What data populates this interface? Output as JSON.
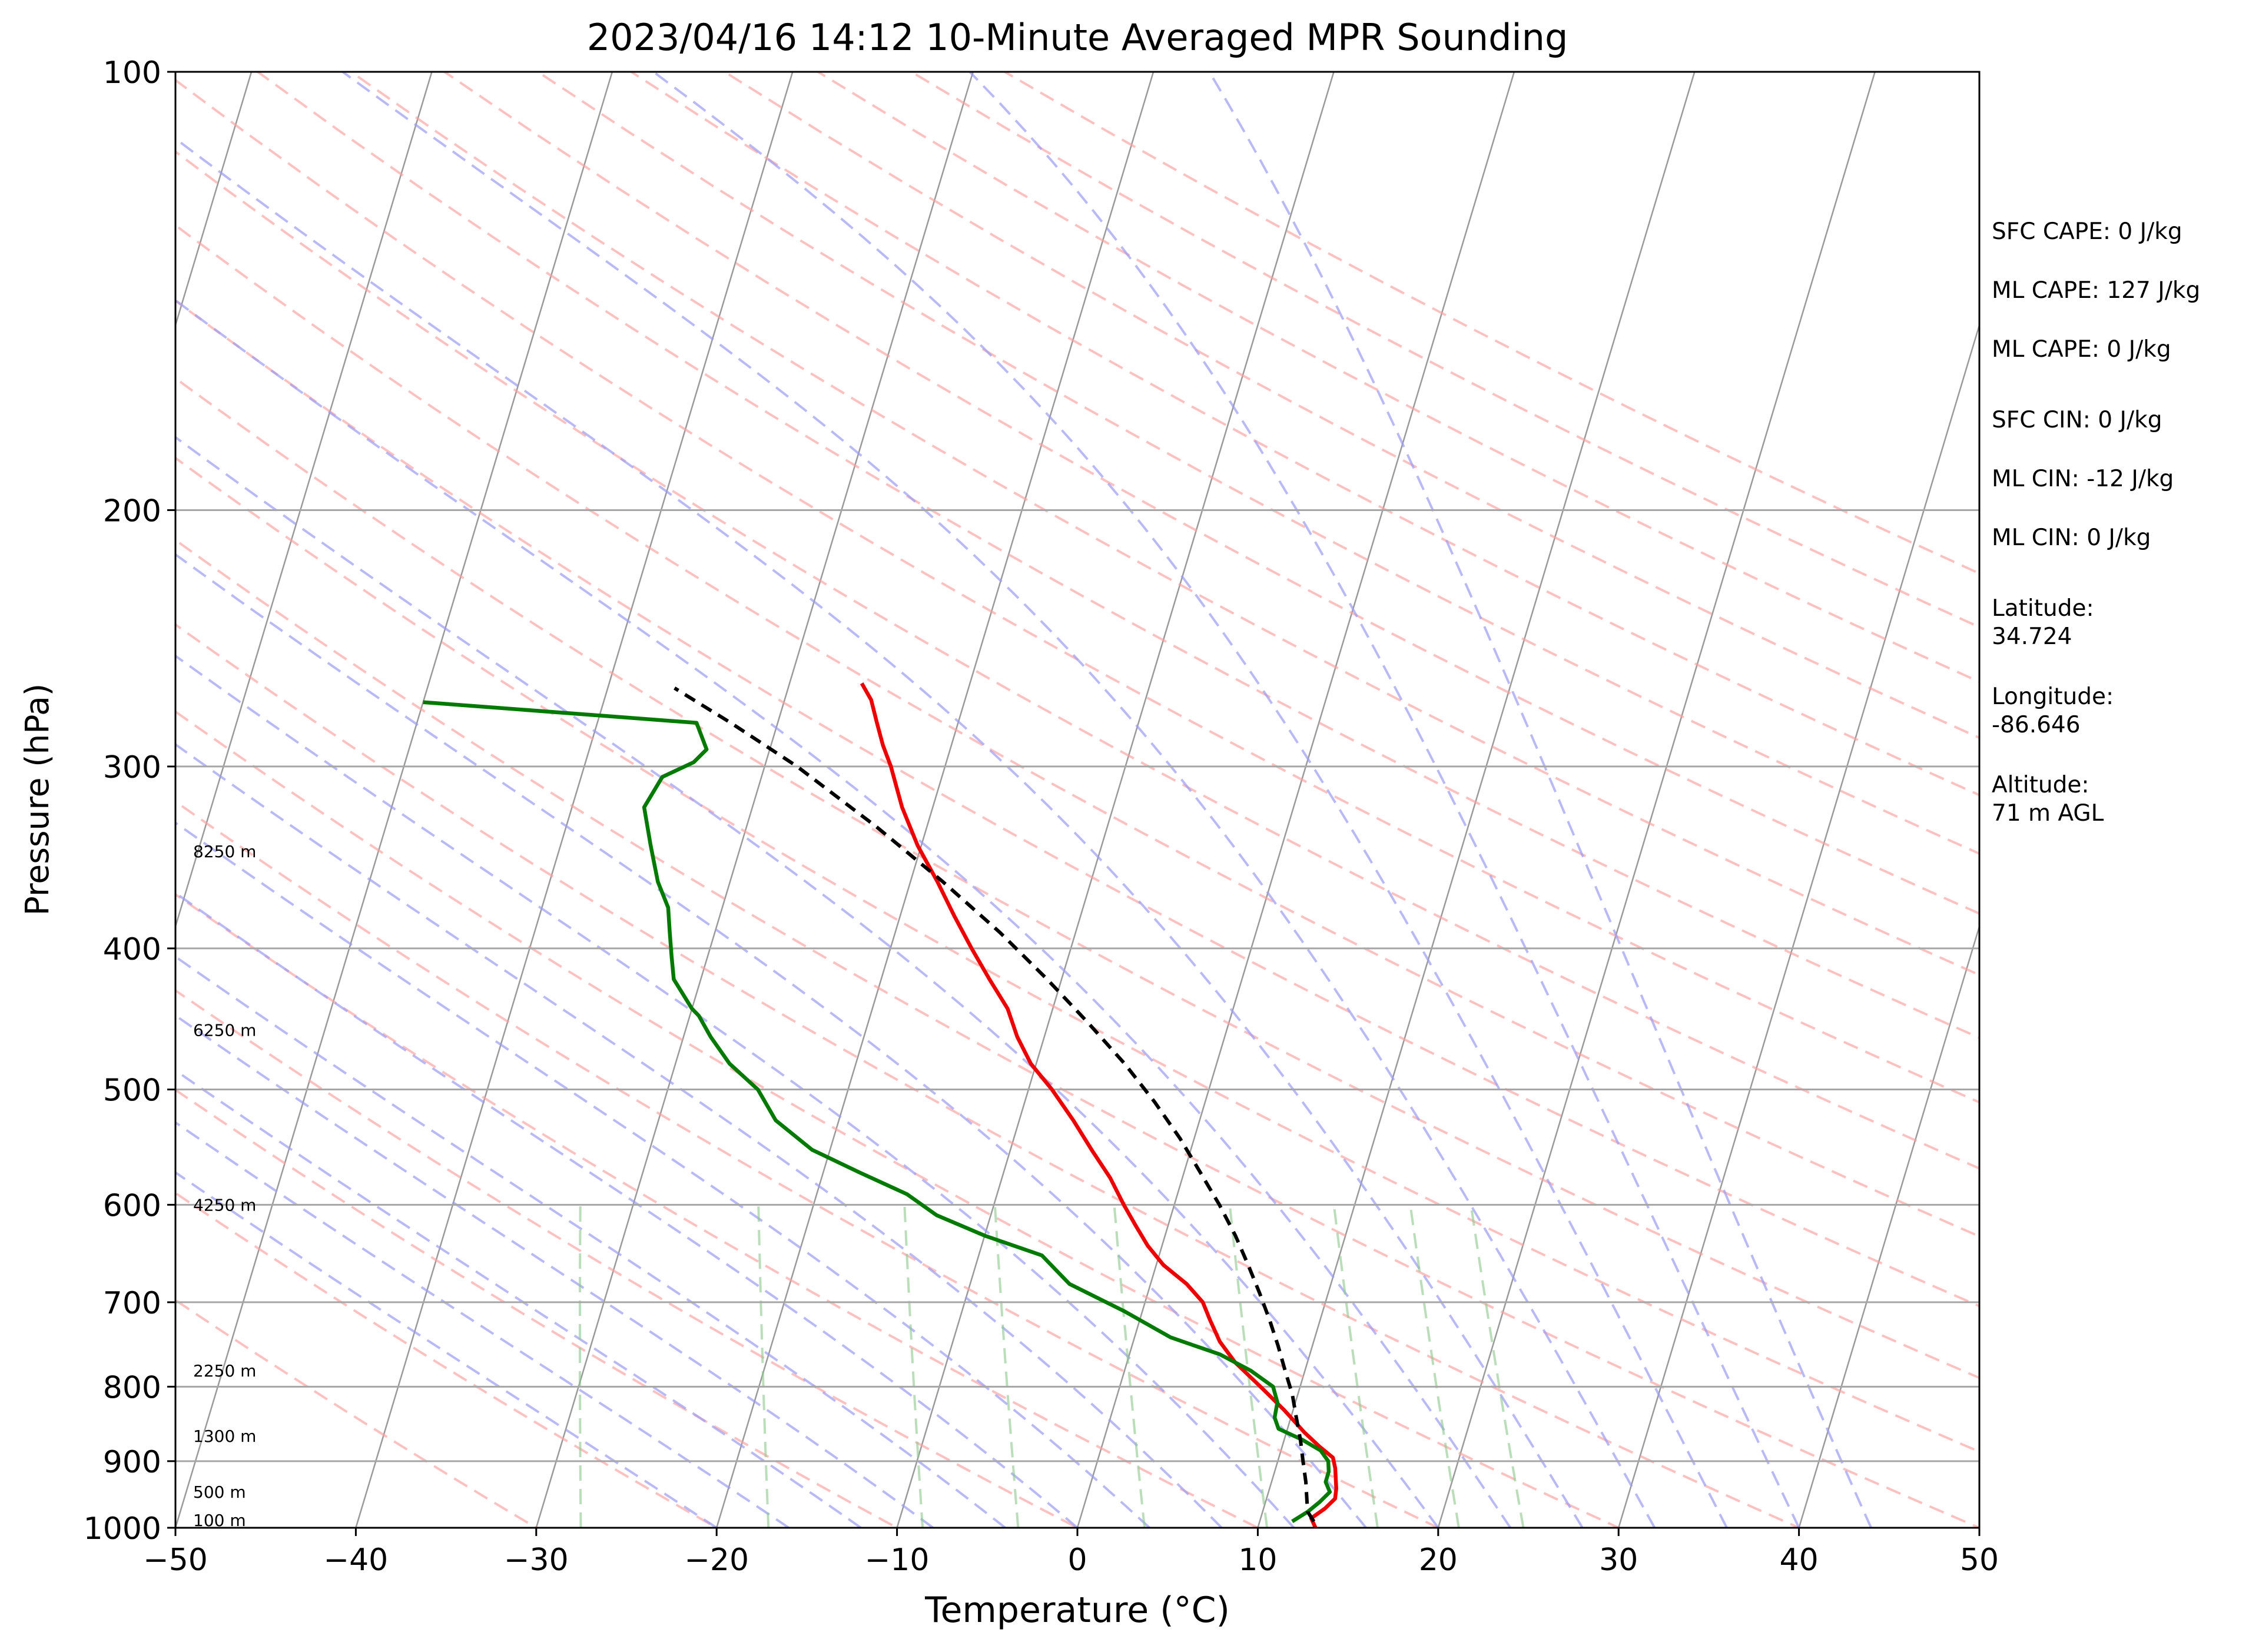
{
  "chart_data": {
    "type": "line",
    "title": "2023/04/16 14:12 10-Minute Averaged MPR Sounding",
    "xlabel": "Temperature (°C)",
    "ylabel": "Pressure (hPa)",
    "xlim": [
      -50,
      50
    ],
    "ylim": [
      1000,
      100
    ],
    "y_scale": "log",
    "x_ticks": [
      "−50",
      "−40",
      "−30",
      "−20",
      "−10",
      "0",
      "10",
      "20",
      "30",
      "40",
      "50"
    ],
    "y_ticks": [
      "100",
      "200",
      "300",
      "400",
      "500",
      "600",
      "700",
      "800",
      "900",
      "1000"
    ],
    "grid": true,
    "background_lines": [
      "isotherms",
      "dry adiabats",
      "moist adiabats",
      "mixing ratio lines"
    ],
    "height_labels": [
      {
        "label": "100 m",
        "pressure": 988
      },
      {
        "label": "500 m",
        "pressure": 945
      },
      {
        "label": "1300 m",
        "pressure": 865
      },
      {
        "label": "2250 m",
        "pressure": 780
      },
      {
        "label": "4250 m",
        "pressure": 600
      },
      {
        "label": "6250 m",
        "pressure": 455
      },
      {
        "label": "8250 m",
        "pressure": 343
      }
    ],
    "series": [
      {
        "role": "temperature",
        "color": "#ee0000",
        "pressure": [
          1000,
          985,
          970,
          955,
          940,
          925,
          910,
          895,
          880,
          860,
          830,
          800,
          770,
          745,
          720,
          700,
          680,
          660,
          640,
          620,
          600,
          575,
          550,
          525,
          500,
          480,
          460,
          440,
          420,
          400,
          380,
          360,
          340,
          320,
          300,
          290,
          280,
          270,
          263
        ],
        "values": [
          13.2,
          12.8,
          13.4,
          13.8,
          13.7,
          13.5,
          13.3,
          13.0,
          12.1,
          11.0,
          9.5,
          7.8,
          6.0,
          4.8,
          3.9,
          3.2,
          2.0,
          0.4,
          -0.8,
          -1.8,
          -2.8,
          -4.0,
          -5.5,
          -7.0,
          -8.7,
          -10.3,
          -11.5,
          -12.5,
          -14.0,
          -15.5,
          -17.0,
          -18.5,
          -20.2,
          -21.7,
          -23.0,
          -23.8,
          -24.5,
          -25.2,
          -26.0
        ]
      },
      {
        "role": "dewpoint",
        "color": "#007a00",
        "pressure": [
          990,
          975,
          960,
          945,
          930,
          915,
          900,
          885,
          870,
          855,
          840,
          820,
          800,
          780,
          760,
          740,
          710,
          680,
          650,
          630,
          610,
          590,
          570,
          550,
          525,
          500,
          480,
          460,
          445,
          440,
          420,
          405,
          390,
          375,
          360,
          340,
          320,
          305,
          298,
          292,
          280,
          271
        ],
        "values": [
          11.8,
          12.5,
          13.0,
          13.4,
          13.0,
          13.0,
          12.8,
          12.2,
          11.0,
          9.5,
          9.1,
          9.0,
          8.5,
          7.0,
          5.0,
          2.0,
          -1.0,
          -4.5,
          -6.5,
          -10.0,
          -13.0,
          -15.0,
          -18.0,
          -21.0,
          -23.5,
          -25.0,
          -27.0,
          -28.5,
          -29.5,
          -30.0,
          -31.5,
          -32.0,
          -32.5,
          -33.0,
          -34.0,
          -35.0,
          -36.0,
          -35.5,
          -34.0,
          -33.5,
          -34.5,
          -50.0
        ]
      },
      {
        "role": "parcel",
        "color": "#000000",
        "pressure": [
          990,
          975,
          960,
          945,
          930,
          900,
          870,
          840,
          810,
          780,
          750,
          720,
          690,
          660,
          630,
          600,
          570,
          540,
          510,
          480,
          450,
          420,
          390,
          360,
          330,
          300,
          280,
          265
        ],
        "values": [
          13.0,
          12.5,
          12.3,
          12.1,
          11.9,
          11.4,
          10.9,
          10.3,
          9.7,
          8.9,
          8.1,
          7.2,
          6.2,
          5.1,
          3.9,
          2.5,
          0.9,
          -0.8,
          -2.8,
          -5.1,
          -7.8,
          -10.8,
          -14.2,
          -18.2,
          -22.8,
          -28.2,
          -32.6,
          -36.3
        ]
      }
    ]
  },
  "side_panel": {
    "sfc_cape": "SFC CAPE: 0 J/kg",
    "ml_cape_1": "ML CAPE: 127 J/kg",
    "ml_cape_2": "ML CAPE: 0 J/kg",
    "sfc_cin": "SFC CIN: 0 J/kg",
    "ml_cin_1": "ML CIN: -12 J/kg",
    "ml_cin_2": "ML CIN: 0 J/kg",
    "latitude": "Latitude:\n34.724",
    "longitude": "Longitude:\n-86.646",
    "altitude": "Altitude:\n71 m AGL"
  },
  "colors": {
    "isotherm": "#9a9a9a",
    "dry_adiabat": "#ff9e9e",
    "moist_adiabat": "#9b9bf5",
    "mixing_ratio": "#8cc88c",
    "grid": "#a6a6a6"
  }
}
